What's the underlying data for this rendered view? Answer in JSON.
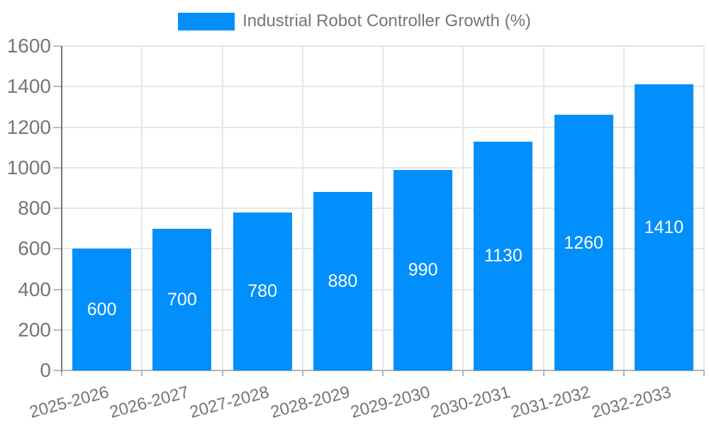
{
  "legend": {
    "label": "Industrial Robot Controller Growth (%)"
  },
  "chart_data": {
    "type": "bar",
    "title": "Industrial Robot Controller Growth (%)",
    "categories": [
      "2025-2026",
      "2026-2027",
      "2027-2028",
      "2028-2029",
      "2029-2030",
      "2030-2031",
      "2031-2032",
      "2032-2033"
    ],
    "values": [
      600,
      700,
      780,
      880,
      990,
      1130,
      1260,
      1410
    ],
    "series": [
      {
        "name": "Industrial Robot Controller Growth (%)",
        "values": [
          600,
          700,
          780,
          880,
          990,
          1130,
          1260,
          1410
        ]
      }
    ],
    "xlabel": "",
    "ylabel": "",
    "ylim": [
      0,
      1600
    ],
    "yticks": [
      0,
      200,
      400,
      600,
      800,
      1000,
      1200,
      1400,
      1600
    ],
    "grid": "both",
    "legend_position": "top-center",
    "bar_color": "#008FFB",
    "bar_label_color": "#ffffff",
    "axis_text_color": "#757575",
    "gridline_color": "#e6e6e6"
  }
}
